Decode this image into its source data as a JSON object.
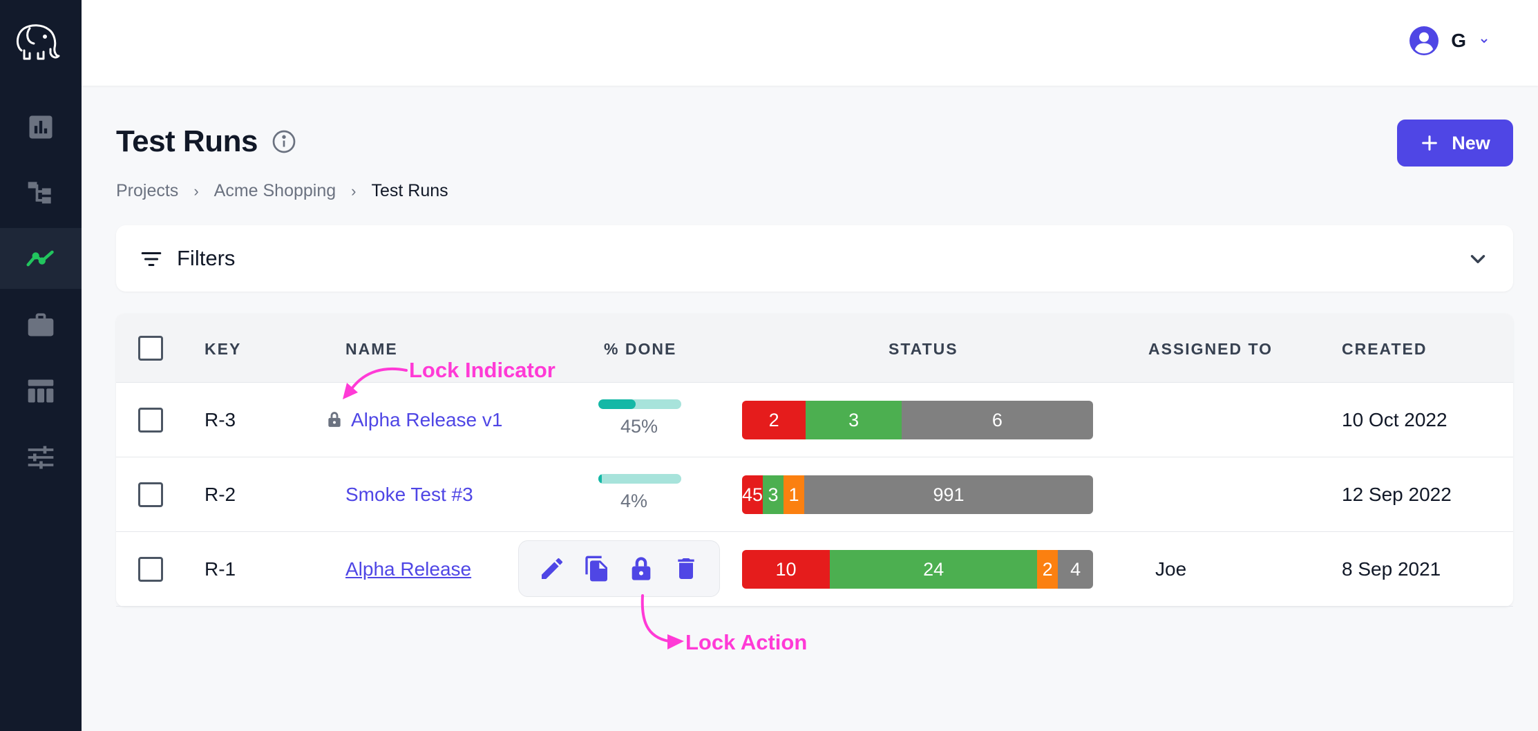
{
  "topbar": {
    "user_initial": "G"
  },
  "header": {
    "title": "Test Runs",
    "new_button_label": "New"
  },
  "breadcrumb": [
    "Projects",
    "Acme Shopping",
    "Test Runs"
  ],
  "filters": {
    "label": "Filters"
  },
  "table": {
    "columns": [
      "KEY",
      "NAME",
      "% DONE",
      "STATUS",
      "ASSIGNED TO",
      "CREATED"
    ],
    "rows": [
      {
        "key": "R-3",
        "name": "Alpha Release v1",
        "locked": true,
        "done_fraction": 0.45,
        "done_text": "45%",
        "status": [
          {
            "value": "2",
            "color": "red"
          },
          {
            "value": "3",
            "color": "green"
          },
          {
            "value": "6",
            "color": "gray"
          }
        ],
        "assigned_to": "",
        "created": "10 Oct 2022"
      },
      {
        "key": "R-2",
        "name": "Smoke Test #3",
        "locked": false,
        "done_fraction": 0.04,
        "done_text": "4%",
        "status": [
          {
            "value": "45",
            "color": "red"
          },
          {
            "value": "3",
            "color": "green"
          },
          {
            "value": "1",
            "color": "orange"
          },
          {
            "value": "991",
            "color": "gray"
          }
        ],
        "assigned_to": "",
        "created": "12 Sep 2022"
      },
      {
        "key": "R-1",
        "name": "Alpha Release",
        "locked": false,
        "done_fraction": null,
        "done_text": "",
        "status": [
          {
            "value": "10",
            "color": "red"
          },
          {
            "value": "24",
            "color": "green"
          },
          {
            "value": "2",
            "color": "orange"
          },
          {
            "value": "4",
            "color": "gray"
          }
        ],
        "assigned_to": "Joe",
        "created": "8 Sep 2021"
      }
    ]
  },
  "row_actions": [
    "edit-icon",
    "copy-icon",
    "lock-icon",
    "delete-icon"
  ],
  "annotations": {
    "lock_indicator": "Lock Indicator",
    "lock_action": "Lock Action"
  },
  "colors": {
    "accent": "#4f46e5",
    "sidebar": "#121a2b",
    "annotation": "#ff3ad6",
    "status_red": "#e51c1c",
    "status_green": "#4caf50",
    "status_orange": "#fb8010",
    "status_gray": "#808080",
    "progress": "#14b8a6"
  }
}
